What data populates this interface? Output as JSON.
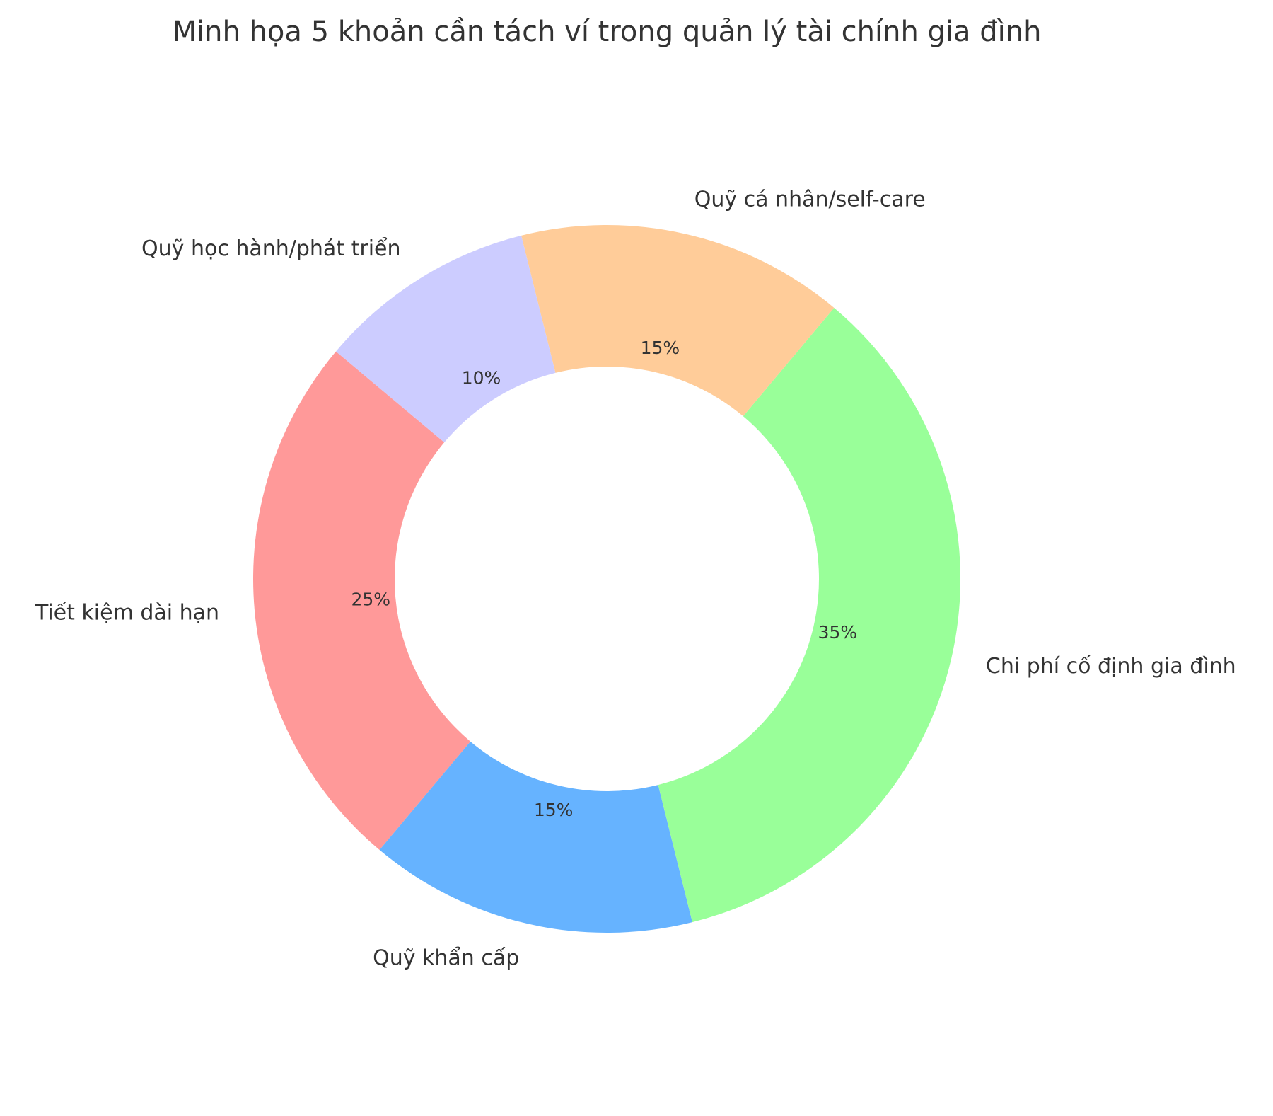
{
  "chart_data": {
    "type": "pie",
    "variant": "donut",
    "title": "Minh họa 5 khoản cần tách ví trong quản lý tài chính gia đình",
    "start_angle_deg": 140,
    "direction": "counterclockwise",
    "hole_ratio": 0.6,
    "legend": "none",
    "slices": [
      {
        "label": "Tiết kiệm dài hạn",
        "value": 25,
        "pct_label": "25%",
        "color": "#ff9999"
      },
      {
        "label": "Quỹ khẩn cấp",
        "value": 15,
        "pct_label": "15%",
        "color": "#66b3ff"
      },
      {
        "label": "Chi phí cố định gia đình",
        "value": 35,
        "pct_label": "35%",
        "color": "#99ff99"
      },
      {
        "label": "Quỹ cá nhân/self-care",
        "value": 15,
        "pct_label": "15%",
        "color": "#ffcc99"
      },
      {
        "label": "Quỹ học hành/phát triển",
        "value": 10,
        "pct_label": "10%",
        "color": "#ccccff"
      }
    ]
  }
}
